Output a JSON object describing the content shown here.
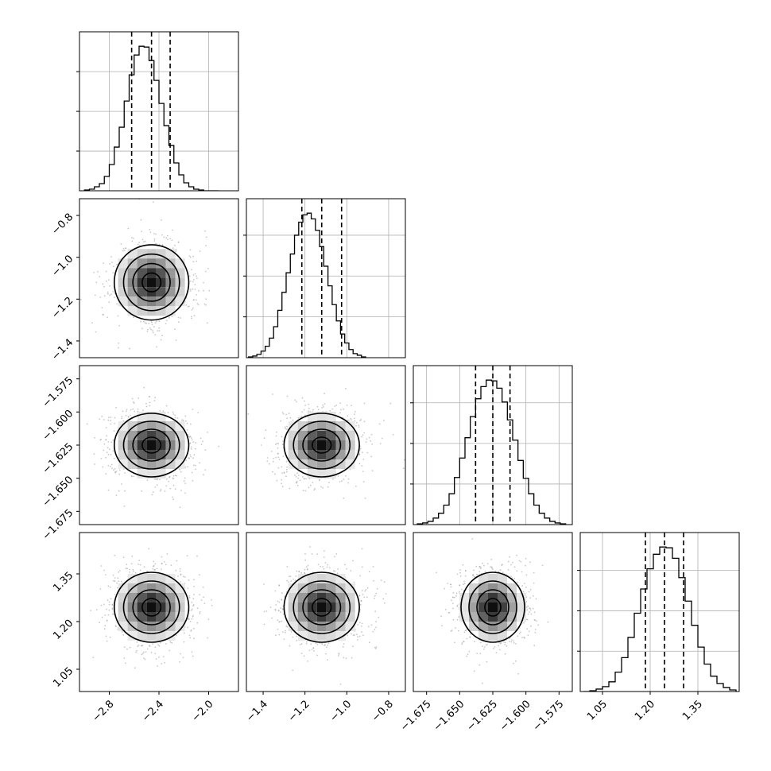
{
  "figure": {
    "type": "corner-plot",
    "parameters": [
      {
        "ticks": [
          "-2.8",
          "-2.4",
          "-2.0"
        ],
        "tick_values": [
          -2.8,
          -2.4,
          -2.0
        ],
        "range": [
          -3.04,
          -1.76
        ],
        "mean": -2.46,
        "sigma": 0.15,
        "quantiles": [
          -2.62,
          -2.46,
          -2.31
        ]
      },
      {
        "ticks": [
          "-1.4",
          "-1.2",
          "-1.0",
          "-0.8"
        ],
        "tick_values": [
          -1.4,
          -1.2,
          -1.0,
          -0.8
        ],
        "range": [
          -1.48,
          -0.72
        ],
        "mean": -1.12,
        "sigma": 0.09,
        "quantiles": [
          -1.215,
          -1.12,
          -1.025
        ]
      },
      {
        "ticks": [
          "-1.675",
          "-1.650",
          "-1.625",
          "-1.600",
          "-1.575"
        ],
        "tick_values": [
          -1.675,
          -1.65,
          -1.625,
          -1.6,
          -1.575
        ],
        "range": [
          -1.685,
          -1.565
        ],
        "mean": -1.625,
        "sigma": 0.012,
        "quantiles": [
          -1.638,
          -1.625,
          -1.612
        ]
      },
      {
        "ticks": [
          "1.05",
          "1.20",
          "1.35"
        ],
        "tick_values": [
          1.05,
          1.2,
          1.35
        ],
        "range": [
          0.98,
          1.48
        ],
        "mean": 1.245,
        "sigma": 0.055,
        "quantiles": [
          1.185,
          1.245,
          1.305
        ]
      }
    ]
  },
  "chart_data": {
    "type": "corner",
    "histograms": [
      {
        "parameter": 0,
        "bin_centers": [
          -2.98,
          -2.94,
          -2.9,
          -2.86,
          -2.82,
          -2.78,
          -2.74,
          -2.7,
          -2.66,
          -2.62,
          -2.58,
          -2.54,
          -2.5,
          -2.46,
          -2.42,
          -2.38,
          -2.34,
          -2.3,
          -2.26,
          -2.22,
          -2.18,
          -2.14,
          -2.1,
          -2.06,
          -2.02,
          -1.98,
          -1.94
        ],
        "counts": [
          1,
          2,
          5,
          9,
          18,
          33,
          55,
          80,
          113,
          146,
          171,
          182,
          181,
          164,
          139,
          110,
          82,
          57,
          35,
          20,
          10,
          5,
          2,
          1,
          0,
          0,
          0
        ]
      },
      {
        "parameter": 1,
        "bin_centers": [
          -1.46,
          -1.44,
          -1.42,
          -1.4,
          -1.38,
          -1.36,
          -1.34,
          -1.32,
          -1.3,
          -1.28,
          -1.26,
          -1.24,
          -1.22,
          -1.2,
          -1.18,
          -1.16,
          -1.14,
          -1.12,
          -1.1,
          -1.08,
          -1.06,
          -1.04,
          -1.02,
          -1.0,
          -0.98,
          -0.96,
          -0.94,
          -0.92
        ],
        "counts": [
          1,
          2,
          4,
          8,
          14,
          24,
          38,
          58,
          80,
          104,
          127,
          150,
          166,
          175,
          177,
          170,
          156,
          136,
          112,
          88,
          65,
          45,
          29,
          18,
          10,
          5,
          3,
          1
        ]
      },
      {
        "parameter": 2,
        "bin_centers": [
          -1.68,
          -1.676,
          -1.672,
          -1.668,
          -1.664,
          -1.66,
          -1.656,
          -1.652,
          -1.648,
          -1.644,
          -1.64,
          -1.636,
          -1.632,
          -1.628,
          -1.624,
          -1.62,
          -1.616,
          -1.612,
          -1.608,
          -1.604,
          -1.6,
          -1.596,
          -1.592,
          -1.588,
          -1.584,
          -1.58,
          -1.576,
          -1.572
        ],
        "counts": [
          1,
          2,
          4,
          8,
          14,
          24,
          38,
          58,
          82,
          107,
          133,
          155,
          170,
          178,
          177,
          168,
          151,
          129,
          104,
          79,
          57,
          38,
          24,
          14,
          8,
          4,
          2,
          1
        ]
      },
      {
        "parameter": 3,
        "bin_centers": [
          1.0,
          1.02,
          1.04,
          1.06,
          1.08,
          1.1,
          1.12,
          1.14,
          1.16,
          1.18,
          1.2,
          1.22,
          1.24,
          1.26,
          1.28,
          1.3,
          1.32,
          1.34,
          1.36,
          1.38,
          1.4,
          1.42,
          1.44,
          1.46
        ],
        "counts": [
          0,
          1,
          3,
          6,
          12,
          24,
          42,
          67,
          97,
          127,
          152,
          170,
          179,
          178,
          165,
          141,
          112,
          82,
          55,
          34,
          19,
          10,
          5,
          2
        ]
      }
    ],
    "scatter_panels": [
      {
        "x_param": 0,
        "y_param": 1
      },
      {
        "x_param": 0,
        "y_param": 2
      },
      {
        "x_param": 1,
        "y_param": 2
      },
      {
        "x_param": 0,
        "y_param": 3
      },
      {
        "x_param": 1,
        "y_param": 3
      },
      {
        "x_param": 2,
        "y_param": 3
      }
    ],
    "contour_levels_sigma": [
      0.5,
      1.0,
      1.5,
      2.0
    ],
    "quantile_line_style": "dashed",
    "grid": true,
    "colors": {
      "points": "#9a9a9a",
      "density_dark": "#000000",
      "contour": "#000000",
      "grid": "#b0b0b0"
    }
  }
}
